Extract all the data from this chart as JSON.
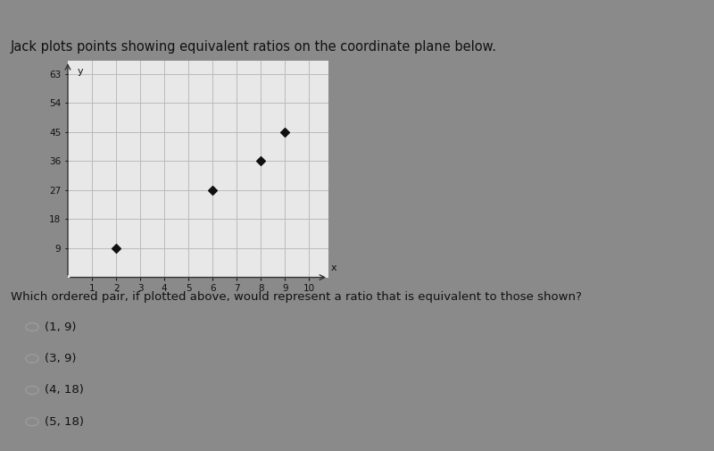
{
  "title": "Jack plots points showing equivalent ratios on the coordinate plane below.",
  "question": "Which ordered pair, if plotted above, would represent a ratio that is equivalent to those shown?",
  "choices": [
    "(1, 9)",
    "(3, 9)",
    "(4, 18)",
    "(5, 18)"
  ],
  "points_x": [
    2,
    6,
    8,
    9
  ],
  "points_y": [
    9,
    27,
    36,
    45
  ],
  "x_ticks": [
    1,
    2,
    3,
    4,
    5,
    6,
    7,
    8,
    9,
    10
  ],
  "y_ticks": [
    9,
    18,
    27,
    36,
    45,
    54,
    63
  ],
  "x_label": "x",
  "y_label": "y",
  "xlim": [
    0,
    10.8
  ],
  "ylim": [
    0,
    67
  ],
  "grid_color": "#bbbbbb",
  "point_color": "#111111",
  "point_marker": "D",
  "point_size": 25,
  "fig_bg_color": "#8a8a8a",
  "plot_bg_color": "#e8e8e8",
  "panel_bg_color": "#c0c0c0",
  "text_color": "#111111",
  "choice_circle_color": "#999999",
  "title_fontsize": 10.5,
  "tick_fontsize": 7.5,
  "question_fontsize": 9.5,
  "choice_fontsize": 9.5,
  "top_bar_color": "#3a3a3a"
}
